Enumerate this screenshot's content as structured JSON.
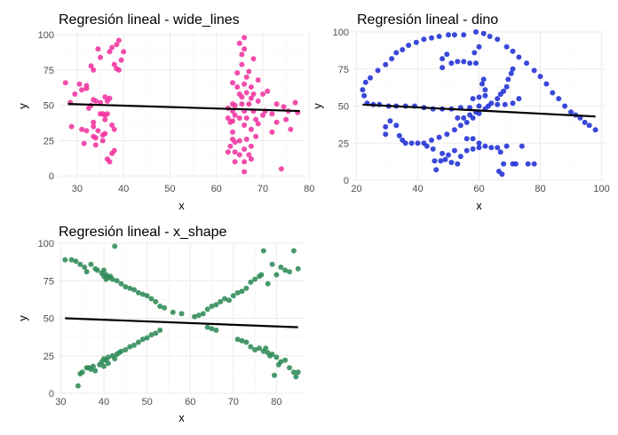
{
  "chart_data": [
    {
      "type": "scatter",
      "title": "Regresión lineal - wide_lines",
      "xlabel": "x",
      "ylabel": "y",
      "xlim": [
        26,
        79
      ],
      "ylim": [
        -3,
        102
      ],
      "xticks": [
        30,
        40,
        50,
        60,
        70,
        80
      ],
      "yticks": [
        0,
        25,
        50,
        75,
        100
      ],
      "point_color": "#f0339f",
      "regression": {
        "x1": 28,
        "y1": 51,
        "x2": 78,
        "y2": 46
      },
      "points": [
        [
          27.5,
          66
        ],
        [
          28.5,
          52
        ],
        [
          28.8,
          35
        ],
        [
          29.5,
          58
        ],
        [
          30.5,
          65
        ],
        [
          31,
          33
        ],
        [
          31.5,
          23
        ],
        [
          31,
          61
        ],
        [
          32,
          64
        ],
        [
          32,
          32
        ],
        [
          32.5,
          48
        ],
        [
          33,
          50
        ],
        [
          33.5,
          54
        ],
        [
          33.5,
          38
        ],
        [
          33.5,
          35
        ],
        [
          34,
          27
        ],
        [
          34,
          22
        ],
        [
          34,
          53
        ],
        [
          34.5,
          32
        ],
        [
          34.5,
          90
        ],
        [
          35,
          44
        ],
        [
          35,
          52
        ],
        [
          35.5,
          25
        ],
        [
          35.5,
          29
        ],
        [
          35.5,
          44
        ],
        [
          36,
          30
        ],
        [
          36,
          43
        ],
        [
          36.5,
          12
        ],
        [
          36.5,
          44
        ],
        [
          36.5,
          53
        ],
        [
          37,
          88
        ],
        [
          37,
          10
        ],
        [
          37.5,
          16
        ],
        [
          37.5,
          36
        ],
        [
          38,
          33
        ],
        [
          38,
          79
        ],
        [
          38,
          18
        ],
        [
          38.5,
          93
        ],
        [
          38.5,
          76
        ],
        [
          39,
          96
        ],
        [
          39,
          75
        ],
        [
          39.5,
          82
        ],
        [
          40,
          88
        ],
        [
          37,
          55
        ],
        [
          36,
          56
        ],
        [
          35,
          84
        ],
        [
          37.5,
          91
        ],
        [
          36,
          40
        ],
        [
          33.5,
          75
        ],
        [
          33,
          78
        ],
        [
          32,
          62
        ],
        [
          33.5,
          28
        ],
        [
          62.5,
          48
        ],
        [
          62.5,
          17
        ],
        [
          62.5,
          41
        ],
        [
          63,
          21
        ],
        [
          63,
          38
        ],
        [
          63.5,
          26
        ],
        [
          63.5,
          31
        ],
        [
          63.5,
          46
        ],
        [
          63.5,
          51
        ],
        [
          63.5,
          66
        ],
        [
          64,
          10
        ],
        [
          64,
          17
        ],
        [
          64,
          24
        ],
        [
          64,
          50
        ],
        [
          64.5,
          63
        ],
        [
          64.5,
          73
        ],
        [
          65,
          15
        ],
        [
          65,
          25
        ],
        [
          65,
          41
        ],
        [
          65,
          58
        ],
        [
          65.5,
          51
        ],
        [
          65.5,
          56
        ],
        [
          65.5,
          79
        ],
        [
          65.5,
          86
        ],
        [
          66,
          3
        ],
        [
          66,
          10
        ],
        [
          66,
          19
        ],
        [
          66,
          36
        ],
        [
          66,
          46
        ],
        [
          66,
          65
        ],
        [
          66,
          90
        ],
        [
          66,
          98
        ],
        [
          66.5,
          26
        ],
        [
          66.5,
          41
        ],
        [
          66.5,
          59
        ],
        [
          66.5,
          70
        ],
        [
          67,
          15
        ],
        [
          67,
          51
        ],
        [
          67,
          74
        ],
        [
          67.5,
          21
        ],
        [
          67.5,
          33
        ],
        [
          67.5,
          55
        ],
        [
          67.5,
          63
        ],
        [
          68,
          46
        ],
        [
          68,
          58
        ],
        [
          68,
          83
        ],
        [
          68.5,
          28
        ],
        [
          68.5,
          40
        ],
        [
          69,
          37
        ],
        [
          69,
          53
        ],
        [
          69,
          68
        ],
        [
          70,
          43
        ],
        [
          70,
          58
        ],
        [
          70.5,
          46
        ],
        [
          71,
          60
        ],
        [
          72,
          31
        ],
        [
          72,
          44
        ],
        [
          73,
          38
        ],
        [
          73,
          51
        ],
        [
          74,
          5
        ],
        [
          74.5,
          49
        ],
        [
          75,
          40
        ],
        [
          75.5,
          46
        ],
        [
          76,
          33
        ],
        [
          77,
          52
        ],
        [
          77.5,
          45
        ],
        [
          63.5,
          39
        ],
        [
          64,
          43
        ],
        [
          65,
          94
        ],
        [
          67.5,
          12
        ]
      ]
    },
    {
      "type": "scatter",
      "title": "Regresión lineal - dino",
      "xlabel": "x",
      "ylabel": "y",
      "xlim": [
        19,
        101
      ],
      "ylim": [
        0,
        100
      ],
      "xticks": [
        20,
        40,
        60,
        80,
        100
      ],
      "yticks": [
        0,
        25,
        50,
        75,
        100
      ],
      "point_color": "#1f2fd4",
      "regression": {
        "x1": 22,
        "y1": 51,
        "x2": 98,
        "y2": 43
      },
      "points": [
        [
          22,
          61
        ],
        [
          22.5,
          57
        ],
        [
          23,
          66
        ],
        [
          23.5,
          52
        ],
        [
          24.5,
          69
        ],
        [
          25.5,
          51
        ],
        [
          27,
          74
        ],
        [
          29.5,
          78
        ],
        [
          31.5,
          82
        ],
        [
          33,
          86
        ],
        [
          35,
          88
        ],
        [
          37,
          91
        ],
        [
          39.5,
          93
        ],
        [
          42,
          95
        ],
        [
          44.5,
          96
        ],
        [
          47,
          97
        ],
        [
          50,
          98
        ],
        [
          52,
          98
        ],
        [
          55,
          98
        ],
        [
          59,
          100
        ],
        [
          61.5,
          99
        ],
        [
          63.5,
          97
        ],
        [
          66,
          95
        ],
        [
          69,
          90
        ],
        [
          71,
          87
        ],
        [
          73,
          83
        ],
        [
          75.5,
          79
        ],
        [
          78,
          74
        ],
        [
          80,
          70
        ],
        [
          82,
          65
        ],
        [
          84,
          59
        ],
        [
          86,
          55
        ],
        [
          88,
          50
        ],
        [
          90,
          46
        ],
        [
          91.5,
          44
        ],
        [
          93,
          42
        ],
        [
          94.5,
          39
        ],
        [
          96,
          37
        ],
        [
          98,
          34
        ],
        [
          27.5,
          51
        ],
        [
          30.5,
          50
        ],
        [
          33,
          50
        ],
        [
          36,
          50
        ],
        [
          39,
          50
        ],
        [
          42,
          49
        ],
        [
          45,
          48
        ],
        [
          48,
          48
        ],
        [
          51,
          48
        ],
        [
          54,
          49
        ],
        [
          57,
          49
        ],
        [
          60,
          50
        ],
        [
          63,
          50
        ],
        [
          66,
          51
        ],
        [
          68.5,
          51
        ],
        [
          71,
          52
        ],
        [
          73,
          55
        ],
        [
          29.5,
          31
        ],
        [
          29.5,
          36
        ],
        [
          31,
          40
        ],
        [
          33,
          37
        ],
        [
          34,
          30
        ],
        [
          35,
          27
        ],
        [
          36,
          25
        ],
        [
          38,
          25
        ],
        [
          40,
          25
        ],
        [
          42,
          25
        ],
        [
          44.5,
          27
        ],
        [
          47,
          29
        ],
        [
          49.5,
          31
        ],
        [
          52,
          34
        ],
        [
          54,
          37
        ],
        [
          56,
          39
        ],
        [
          58,
          42
        ],
        [
          60,
          45
        ],
        [
          62,
          48
        ],
        [
          64,
          52
        ],
        [
          66,
          55
        ],
        [
          67,
          58
        ],
        [
          68,
          60
        ],
        [
          69,
          63
        ],
        [
          69.5,
          68
        ],
        [
          70.5,
          72
        ],
        [
          71,
          75
        ],
        [
          48,
          76
        ],
        [
          48,
          82
        ],
        [
          49.5,
          85
        ],
        [
          51,
          79
        ],
        [
          53,
          80
        ],
        [
          55,
          80
        ],
        [
          57,
          79
        ],
        [
          59,
          79
        ],
        [
          58.5,
          86
        ],
        [
          60,
          90
        ],
        [
          61,
          65
        ],
        [
          61.5,
          68
        ],
        [
          62,
          61
        ],
        [
          62,
          57
        ],
        [
          60,
          56
        ],
        [
          58,
          55
        ],
        [
          45.5,
          13
        ],
        [
          46,
          7
        ],
        [
          47.5,
          13
        ],
        [
          48,
          18
        ],
        [
          49,
          14
        ],
        [
          50,
          17
        ],
        [
          51,
          12
        ],
        [
          52,
          20
        ],
        [
          53,
          11
        ],
        [
          54,
          16
        ],
        [
          56,
          20
        ],
        [
          58,
          21
        ],
        [
          60,
          22
        ],
        [
          62,
          23
        ],
        [
          64,
          22
        ],
        [
          66,
          22
        ],
        [
          67,
          19
        ],
        [
          66.5,
          6
        ],
        [
          67.5,
          4
        ],
        [
          68,
          11
        ],
        [
          69,
          23
        ],
        [
          71,
          11
        ],
        [
          72,
          11
        ],
        [
          74,
          23
        ],
        [
          76,
          11
        ],
        [
          78,
          11
        ],
        [
          53,
          42
        ],
        [
          55,
          42
        ],
        [
          57,
          44
        ],
        [
          59,
          46
        ],
        [
          43,
          23
        ],
        [
          45,
          21
        ],
        [
          56,
          28
        ],
        [
          58,
          28
        ],
        [
          60,
          25
        ]
      ]
    },
    {
      "type": "scatter",
      "title": "Regresión lineal - x_shape",
      "xlabel": "x",
      "ylabel": "y",
      "xlim": [
        29.5,
        86.5
      ],
      "ylim": [
        0,
        100
      ],
      "xticks": [
        30,
        40,
        50,
        60,
        70,
        80
      ],
      "yticks": [
        0,
        25,
        50,
        75,
        100
      ],
      "point_color": "#2e8b57",
      "regression": {
        "x1": 31,
        "y1": 50,
        "x2": 85,
        "y2": 44
      },
      "points": [
        [
          31,
          89
        ],
        [
          32.5,
          89
        ],
        [
          33.5,
          88
        ],
        [
          34.5,
          86
        ],
        [
          35.5,
          84
        ],
        [
          36,
          81
        ],
        [
          37,
          86
        ],
        [
          38,
          83
        ],
        [
          38.5,
          82
        ],
        [
          39.5,
          80
        ],
        [
          40,
          78
        ],
        [
          40.5,
          79
        ],
        [
          41,
          77
        ],
        [
          41.5,
          78
        ],
        [
          42,
          76
        ],
        [
          42.5,
          98
        ],
        [
          43,
          75
        ],
        [
          44,
          73
        ],
        [
          45,
          71
        ],
        [
          46,
          70
        ],
        [
          47,
          69
        ],
        [
          48,
          67
        ],
        [
          49,
          66
        ],
        [
          50,
          65
        ],
        [
          51,
          63
        ],
        [
          52,
          61
        ],
        [
          53,
          58
        ],
        [
          54,
          57
        ],
        [
          56,
          54
        ],
        [
          40,
          82
        ],
        [
          40.5,
          76
        ],
        [
          71,
          36
        ],
        [
          72,
          35
        ],
        [
          73,
          34
        ],
        [
          74,
          31
        ],
        [
          75,
          29
        ],
        [
          76,
          30
        ],
        [
          77,
          28
        ],
        [
          77.5,
          30
        ],
        [
          78,
          27
        ],
        [
          78.5,
          25
        ],
        [
          79,
          26
        ],
        [
          80,
          24
        ],
        [
          80.5,
          19
        ],
        [
          81,
          21
        ],
        [
          82,
          22
        ],
        [
          83,
          17
        ],
        [
          84,
          14
        ],
        [
          84.5,
          11
        ],
        [
          85,
          14
        ],
        [
          79.5,
          12
        ],
        [
          34,
          5
        ],
        [
          34.5,
          13
        ],
        [
          35,
          14
        ],
        [
          36,
          17
        ],
        [
          36.5,
          17
        ],
        [
          37,
          16
        ],
        [
          37.5,
          18
        ],
        [
          38,
          15
        ],
        [
          39,
          19
        ],
        [
          39.5,
          21
        ],
        [
          40,
          23
        ],
        [
          40.5,
          22
        ],
        [
          41,
          24
        ],
        [
          42,
          25
        ],
        [
          43,
          26
        ],
        [
          44,
          28
        ],
        [
          45,
          29
        ],
        [
          46,
          31
        ],
        [
          47,
          32
        ],
        [
          48,
          34
        ],
        [
          49,
          36
        ],
        [
          50,
          37
        ],
        [
          51,
          39
        ],
        [
          52,
          40
        ],
        [
          53,
          42
        ],
        [
          40,
          18
        ],
        [
          41,
          20
        ],
        [
          42.5,
          23
        ],
        [
          43.5,
          27
        ],
        [
          63,
          53
        ],
        [
          64,
          56
        ],
        [
          65,
          58
        ],
        [
          66,
          59
        ],
        [
          67,
          61
        ],
        [
          68,
          63
        ],
        [
          69,
          62
        ],
        [
          70,
          65
        ],
        [
          71,
          67
        ],
        [
          72,
          68
        ],
        [
          73,
          70
        ],
        [
          74,
          74
        ],
        [
          75,
          76
        ],
        [
          76,
          78
        ],
        [
          76.5,
          79
        ],
        [
          77,
          95
        ],
        [
          78,
          73
        ],
        [
          79,
          86
        ],
        [
          80,
          79
        ],
        [
          81,
          84
        ],
        [
          82,
          82
        ],
        [
          83,
          81
        ],
        [
          84,
          95
        ],
        [
          85,
          83
        ],
        [
          64,
          44
        ],
        [
          65,
          43
        ],
        [
          58,
          53
        ],
        [
          61,
          51
        ],
        [
          62,
          52
        ],
        [
          66,
          42
        ]
      ]
    }
  ]
}
